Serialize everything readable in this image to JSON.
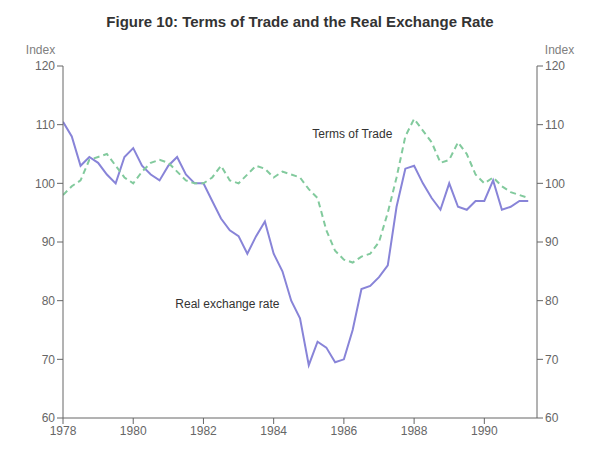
{
  "chart_data": {
    "type": "line",
    "title": "Figure 10: Terms of Trade and the Real Exchange Rate",
    "ylabel": "Index",
    "y2label": "Index",
    "xlim": [
      1978,
      1991.5
    ],
    "xticks": [
      1978,
      1980,
      1982,
      1984,
      1986,
      1988,
      1990
    ],
    "ylim": [
      60,
      120
    ],
    "yticks": [
      60,
      70,
      80,
      90,
      100,
      110,
      120
    ],
    "y2lim": [
      60,
      120
    ],
    "y2ticks": [
      60,
      70,
      80,
      90,
      100,
      110,
      120
    ],
    "grid": false,
    "x": [
      1978.0,
      1978.25,
      1978.5,
      1978.75,
      1979.0,
      1979.25,
      1979.5,
      1979.75,
      1980.0,
      1980.25,
      1980.5,
      1980.75,
      1981.0,
      1981.25,
      1981.5,
      1981.75,
      1982.0,
      1982.25,
      1982.5,
      1982.75,
      1983.0,
      1983.25,
      1983.5,
      1983.75,
      1984.0,
      1984.25,
      1984.5,
      1984.75,
      1985.0,
      1985.25,
      1985.5,
      1985.75,
      1986.0,
      1986.25,
      1986.5,
      1986.75,
      1987.0,
      1987.25,
      1987.5,
      1987.75,
      1988.0,
      1988.25,
      1988.5,
      1988.75,
      1989.0,
      1989.25,
      1989.5,
      1989.75,
      1990.0,
      1990.25,
      1990.5,
      1990.75,
      1991.0,
      1991.25
    ],
    "series": [
      {
        "name": "Real exchange rate",
        "color": "#8884d8",
        "line_style": "solid",
        "values": [
          110.5,
          108.0,
          103.0,
          104.5,
          103.5,
          101.5,
          100.0,
          104.5,
          106.0,
          103.0,
          101.5,
          100.5,
          103.0,
          104.5,
          101.5,
          100.0,
          100.0,
          97.0,
          94.0,
          92.0,
          91.0,
          88.0,
          91.0,
          93.5,
          88.0,
          85.0,
          80.0,
          77.0,
          69.0,
          73.0,
          72.0,
          69.5,
          70.0,
          75.0,
          82.0,
          82.5,
          84.0,
          86.0,
          96.0,
          102.5,
          103.0,
          100.0,
          97.5,
          95.5,
          100.0,
          96.0,
          95.5,
          97.0,
          97.0,
          100.5,
          95.5,
          96.0,
          97.0,
          97.0
        ]
      },
      {
        "name": "Terms of Trade",
        "color": "#82ca9d",
        "line_style": "dashed",
        "values": [
          98.0,
          99.5,
          100.5,
          104.0,
          104.5,
          105.0,
          103.0,
          101.0,
          100.0,
          102.0,
          103.5,
          104.0,
          103.5,
          102.0,
          100.5,
          100.0,
          100.0,
          101.0,
          103.0,
          100.5,
          100.0,
          101.5,
          103.0,
          102.5,
          101.0,
          102.0,
          101.5,
          101.0,
          99.0,
          97.5,
          92.0,
          88.5,
          87.0,
          86.5,
          87.5,
          88.0,
          90.0,
          95.0,
          101.0,
          108.0,
          111.0,
          109.0,
          107.0,
          103.5,
          104.0,
          107.0,
          105.0,
          101.5,
          100.0,
          101.0,
          99.5,
          98.5,
          98.0,
          97.5
        ]
      }
    ],
    "annotations": [
      {
        "text": "Real exchange rate",
        "x": 1981.2,
        "y": 79.5
      },
      {
        "text": "Terms of Trade",
        "x": 1985.1,
        "y": 108.5
      }
    ]
  }
}
